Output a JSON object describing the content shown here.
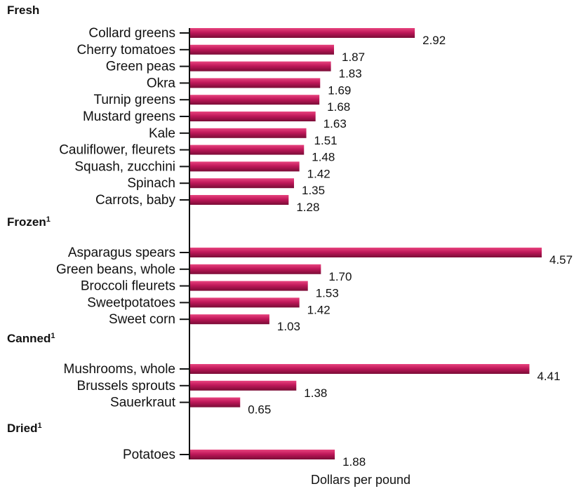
{
  "chart_data": {
    "type": "bar",
    "orientation": "horizontal",
    "xlabel": "Dollars per pound",
    "ylabel": "",
    "xlim": [
      0,
      4.57
    ],
    "grid": false,
    "bar_color": "#c0185a",
    "groups": [
      {
        "name": "Fresh",
        "footnote": "",
        "items": [
          {
            "label": "Collard greens",
            "value": 2.92,
            "value_label": "2.92"
          },
          {
            "label": "Cherry tomatoes",
            "value": 1.87,
            "value_label": "1.87"
          },
          {
            "label": "Green peas",
            "value": 1.83,
            "value_label": "1.83"
          },
          {
            "label": "Okra",
            "value": 1.69,
            "value_label": "1.69"
          },
          {
            "label": "Turnip greens",
            "value": 1.68,
            "value_label": "1.68"
          },
          {
            "label": "Mustard greens",
            "value": 1.63,
            "value_label": "1.63"
          },
          {
            "label": "Kale",
            "value": 1.51,
            "value_label": "1.51"
          },
          {
            "label": "Cauliflower, fleurets",
            "value": 1.48,
            "value_label": "1.48"
          },
          {
            "label": "Squash, zucchini",
            "value": 1.42,
            "value_label": "1.42"
          },
          {
            "label": "Spinach",
            "value": 1.35,
            "value_label": "1.35"
          },
          {
            "label": "Carrots, baby",
            "value": 1.28,
            "value_label": "1.28"
          }
        ]
      },
      {
        "name": "Frozen",
        "footnote": "1",
        "items": [
          {
            "label": "Asparagus spears",
            "value": 4.57,
            "value_label": "4.57"
          },
          {
            "label": "Green beans, whole",
            "value": 1.7,
            "value_label": "1.70"
          },
          {
            "label": "Broccoli fleurets",
            "value": 1.53,
            "value_label": "1.53"
          },
          {
            "label": "Sweetpotatoes",
            "value": 1.42,
            "value_label": "1.42"
          },
          {
            "label": "Sweet corn",
            "value": 1.03,
            "value_label": "1.03"
          }
        ]
      },
      {
        "name": "Canned",
        "footnote": "1",
        "items": [
          {
            "label": "Mushrooms, whole",
            "value": 4.41,
            "value_label": "4.41"
          },
          {
            "label": "Brussels sprouts",
            "value": 1.38,
            "value_label": "1.38"
          },
          {
            "label": "Sauerkraut",
            "value": 0.65,
            "value_label": "0.65"
          }
        ]
      },
      {
        "name": "Dried",
        "footnote": "1",
        "items": [
          {
            "label": "Potatoes",
            "value": 1.88,
            "value_label": "1.88"
          }
        ]
      }
    ]
  }
}
